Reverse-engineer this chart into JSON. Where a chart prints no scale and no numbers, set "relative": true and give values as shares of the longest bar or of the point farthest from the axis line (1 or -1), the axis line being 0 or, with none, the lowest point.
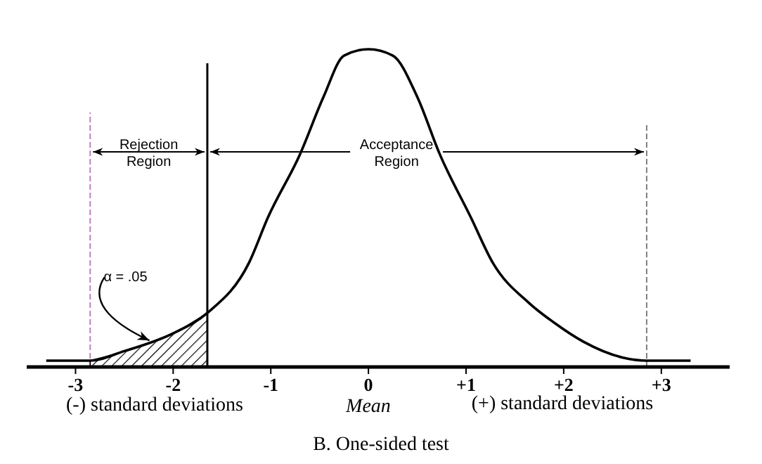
{
  "chart_data": {
    "type": "line",
    "title": "B. One-sided test",
    "relative": true,
    "xlim": [
      -3.5,
      3.7
    ],
    "xticks": [
      -3,
      -2,
      -1,
      0,
      {
        "value": 1,
        "label": "+1"
      },
      {
        "value": 2,
        "label": "+2"
      },
      {
        "value": 3,
        "label": "+3"
      }
    ],
    "series": [
      {
        "color": "#000000",
        "x": [
          -3.3,
          -2.85,
          -2.5,
          -2,
          -1.65,
          -1.22,
          -1.03,
          -0.7,
          -0.46,
          -0.25,
          0,
          0.25,
          0.5,
          0.73,
          1.05,
          1.27,
          1.65,
          1.9,
          2.2,
          2.6,
          2.85,
          3.3
        ],
        "values": [
          0.02,
          0.02,
          0.05,
          0.106,
          0.17,
          0.33,
          0.47,
          0.67,
          0.85,
          0.98,
          1,
          0.98,
          0.85,
          0.67,
          0.47,
          0.33,
          0.2,
          0.14,
          0.08,
          0.03,
          0.02,
          0.02
        ]
      },
      {
        "type": "area",
        "color": "#000000",
        "x": [
          -2.85,
          -2.5,
          -2,
          -1.65
        ],
        "values": [
          0.02,
          0.05,
          0.106,
          0.17
        ]
      }
    ],
    "ref_lines": [
      {
        "axis": "x",
        "value": -2.85,
        "color": "#c080c0",
        "line_style": "dashed"
      },
      {
        "axis": "x",
        "value": -1.65,
        "color": "#000000",
        "line_style": "solid"
      },
      {
        "axis": "x",
        "value": 2.85,
        "color": "#808080",
        "line_style": "dashed"
      }
    ],
    "annotations": [
      {
        "text": "α = .05",
        "x": -2.2,
        "y": 0.07
      },
      "(-) standard deviations",
      "Mean",
      "(+) standard deviations",
      "Rejection Region",
      "Acceptance Region"
    ],
    "grid": false,
    "marker": "none",
    "line_style": "solid"
  }
}
